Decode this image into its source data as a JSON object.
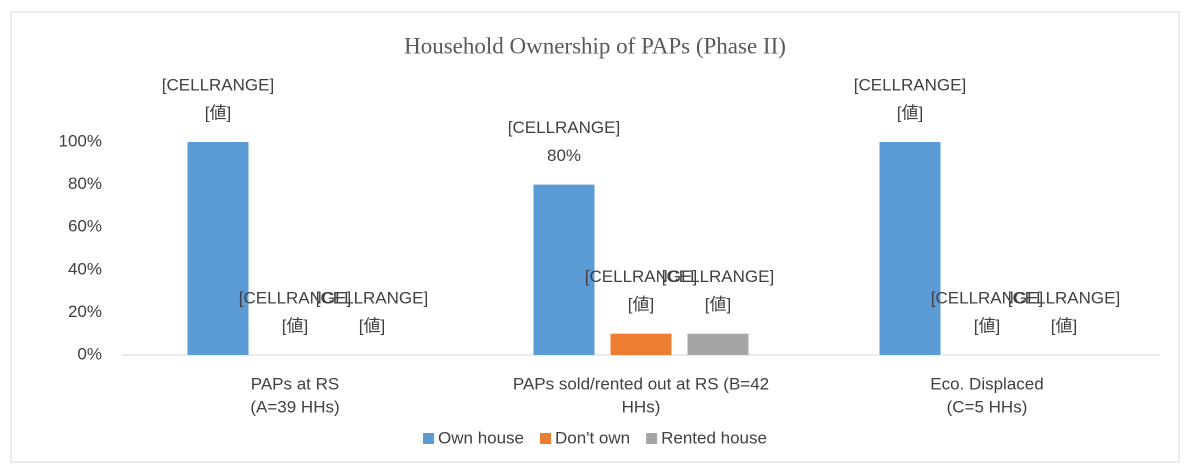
{
  "chart_data": {
    "type": "bar",
    "title": "Household Ownership of PAPs (Phase II)",
    "categories": [
      [
        "PAPs at RS",
        "(A=39 HHs)"
      ],
      [
        "PAPs sold/rented out at RS (B=42",
        "HHs)"
      ],
      [
        "Eco. Displaced",
        "(C=5 HHs)"
      ]
    ],
    "series": [
      {
        "name": "Own house",
        "color": "#5b9bd5",
        "values": [
          100,
          80,
          100
        ],
        "value_labels": [
          [
            "[CELLRANGE]",
            "[値]"
          ],
          [
            "[CELLRANGE]",
            "80%"
          ],
          [
            "[CELLRANGE]",
            "[値]"
          ]
        ]
      },
      {
        "name": "Don't own",
        "color": "#ed7d31",
        "values": [
          0,
          10,
          0
        ],
        "value_labels": [
          [
            "[CELLRANGE]",
            "[値]"
          ],
          [
            "[CELLRANGE]",
            "[値]"
          ],
          [
            "[CELLRANGE]",
            "[値]"
          ]
        ]
      },
      {
        "name": "Rented house",
        "color": "#a5a5a5",
        "values": [
          0,
          10,
          0
        ],
        "value_labels": [
          [
            "[CELLRANGE]",
            "[値]"
          ],
          [
            "[CELLRANGE]",
            "[値]"
          ],
          [
            "[CELLRANGE]",
            "[値]"
          ]
        ]
      }
    ],
    "ylim": [
      0,
      100
    ],
    "yticks": [
      {
        "value": 0,
        "label": "0%"
      },
      {
        "value": 20,
        "label": "20%"
      },
      {
        "value": 40,
        "label": "40%"
      },
      {
        "value": 60,
        "label": "60%"
      },
      {
        "value": 80,
        "label": "80%"
      },
      {
        "value": 100,
        "label": "100%"
      }
    ],
    "grid": false,
    "legend": "bottom"
  }
}
